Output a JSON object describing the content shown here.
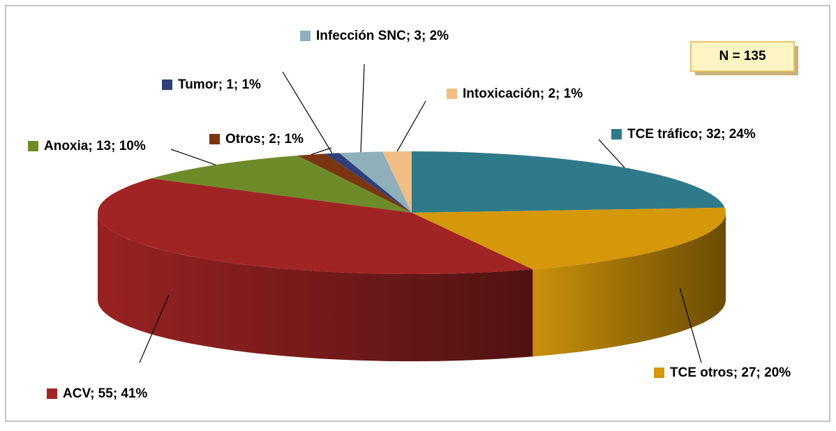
{
  "chart_data": {
    "type": "pie",
    "annotation": "N = 135",
    "categories": [
      "TCE tráfico",
      "TCE otros",
      "ACV",
      "Anoxia",
      "Otros",
      "Tumor",
      "Infección SNC",
      "Intoxicación"
    ],
    "values": [
      32,
      27,
      55,
      13,
      2,
      1,
      3,
      2
    ],
    "value_labels": [
      "; 32; 24%",
      "; 27; 20%",
      "; 55; 41%",
      "; 13; 10%",
      "; 2; 1%",
      "; 1; 1%",
      "; 3; 2%",
      "; 2; 1%"
    ],
    "colors": [
      "#2e7a8a",
      "#d4980a",
      "#a12424",
      "#6e8b2a",
      "#7b3510",
      "#2f3f7a",
      "#8fafbb",
      "#f0be84"
    ]
  }
}
